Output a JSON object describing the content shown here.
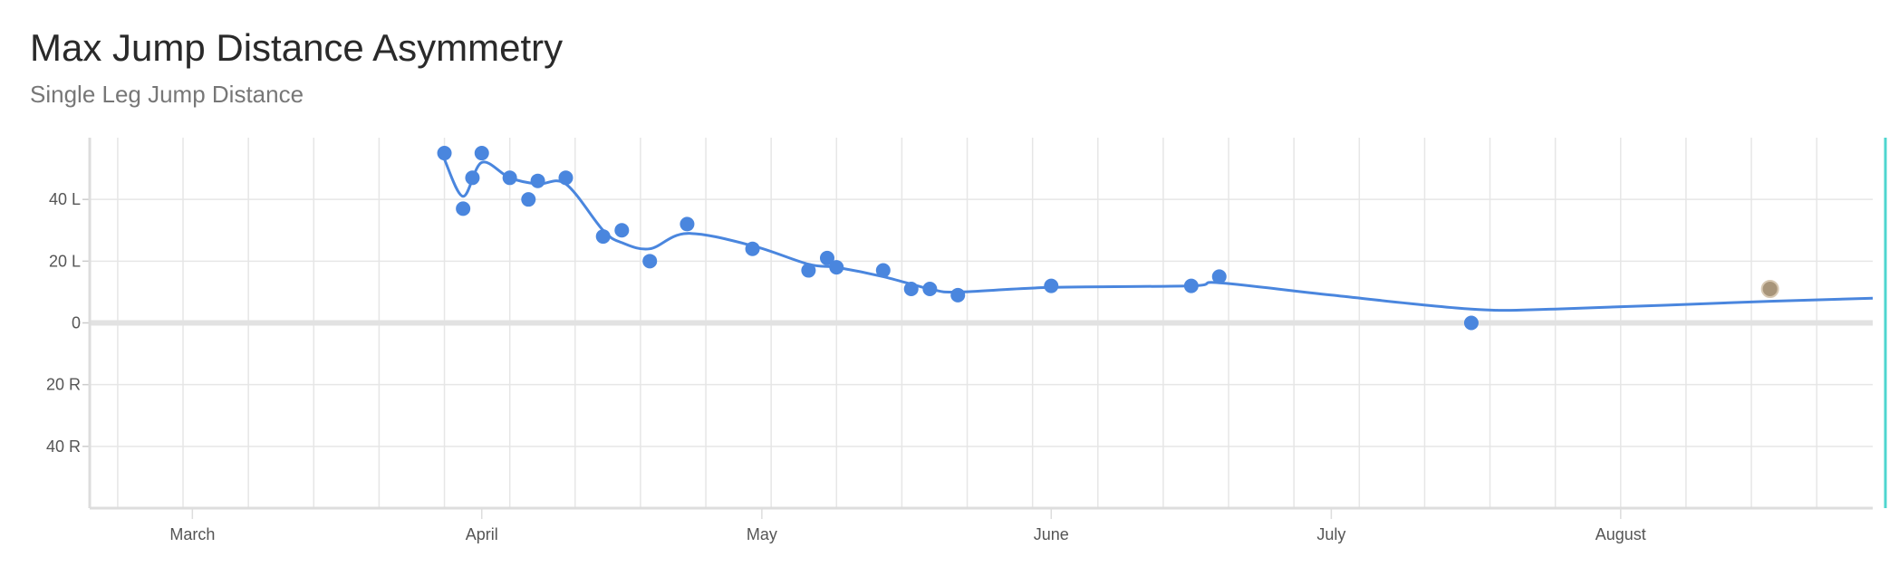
{
  "title": "Max Jump Distance Asymmetry",
  "subtitle": "Single Leg Jump Distance",
  "chart_data": {
    "type": "line",
    "title": "Max Jump Distance Asymmetry",
    "subtitle": "Single Leg Jump Distance",
    "xlabel": "",
    "ylabel": "",
    "x_axis": {
      "type": "date",
      "range": [
        "2023-02-18",
        "2023-08-28"
      ],
      "ticks": [
        {
          "date": "2023-03-01",
          "label": "March"
        },
        {
          "date": "2023-04-01",
          "label": "April"
        },
        {
          "date": "2023-05-01",
          "label": "May"
        },
        {
          "date": "2023-06-01",
          "label": "June"
        },
        {
          "date": "2023-07-01",
          "label": "July"
        },
        {
          "date": "2023-08-01",
          "label": "August"
        }
      ]
    },
    "y_axis": {
      "range": [
        -60,
        60
      ],
      "ticks": [
        {
          "value": 40,
          "label": "40 L"
        },
        {
          "value": 20,
          "label": "20 L"
        },
        {
          "value": 0,
          "label": "0"
        },
        {
          "value": -20,
          "label": "20 R"
        },
        {
          "value": -40,
          "label": "40 R"
        }
      ]
    },
    "grid": true,
    "series": [
      {
        "color": "#4a86de",
        "points": [
          {
            "x": "2023-03-28",
            "y": 55
          },
          {
            "x": "2023-03-30",
            "y": 37
          },
          {
            "x": "2023-03-31",
            "y": 47
          },
          {
            "x": "2023-04-01",
            "y": 55
          },
          {
            "x": "2023-04-04",
            "y": 47
          },
          {
            "x": "2023-04-06",
            "y": 40
          },
          {
            "x": "2023-04-07",
            "y": 46
          },
          {
            "x": "2023-04-10",
            "y": 47
          },
          {
            "x": "2023-04-14",
            "y": 28
          },
          {
            "x": "2023-04-16",
            "y": 30
          },
          {
            "x": "2023-04-19",
            "y": 20
          },
          {
            "x": "2023-04-23",
            "y": 32
          },
          {
            "x": "2023-04-30",
            "y": 24
          },
          {
            "x": "2023-05-06",
            "y": 17
          },
          {
            "x": "2023-05-08",
            "y": 21
          },
          {
            "x": "2023-05-09",
            "y": 18
          },
          {
            "x": "2023-05-14",
            "y": 17
          },
          {
            "x": "2023-05-17",
            "y": 11
          },
          {
            "x": "2023-05-19",
            "y": 11
          },
          {
            "x": "2023-05-22",
            "y": 9
          },
          {
            "x": "2023-06-01",
            "y": 12
          },
          {
            "x": "2023-06-16",
            "y": 12
          },
          {
            "x": "2023-06-19",
            "y": 15
          },
          {
            "x": "2023-07-16",
            "y": 0
          }
        ]
      },
      {
        "color": "#a8957a",
        "points": [
          {
            "x": "2023-08-17",
            "y": 11
          }
        ]
      }
    ],
    "trend_line": {
      "color": "#4a86de",
      "points": [
        {
          "x": "2023-03-28",
          "y": 53
        },
        {
          "x": "2023-03-30",
          "y": 41
        },
        {
          "x": "2023-04-01",
          "y": 52
        },
        {
          "x": "2023-04-04",
          "y": 47
        },
        {
          "x": "2023-04-07",
          "y": 45
        },
        {
          "x": "2023-04-10",
          "y": 45
        },
        {
          "x": "2023-04-14",
          "y": 30
        },
        {
          "x": "2023-04-16",
          "y": 26
        },
        {
          "x": "2023-04-19",
          "y": 24
        },
        {
          "x": "2023-04-23",
          "y": 29
        },
        {
          "x": "2023-04-30",
          "y": 25
        },
        {
          "x": "2023-05-06",
          "y": 19
        },
        {
          "x": "2023-05-09",
          "y": 18
        },
        {
          "x": "2023-05-14",
          "y": 15
        },
        {
          "x": "2023-05-19",
          "y": 11
        },
        {
          "x": "2023-05-22",
          "y": 10
        },
        {
          "x": "2023-06-01",
          "y": 11.5
        },
        {
          "x": "2023-06-16",
          "y": 12
        },
        {
          "x": "2023-06-19",
          "y": 13
        },
        {
          "x": "2023-07-01",
          "y": 9
        },
        {
          "x": "2023-07-16",
          "y": 4.5
        },
        {
          "x": "2023-07-25",
          "y": 4.5
        },
        {
          "x": "2023-08-17",
          "y": 7
        },
        {
          "x": "2023-08-28",
          "y": 8
        }
      ]
    },
    "colors": {
      "series": "#4a86de",
      "highlight_point": "#a8957a",
      "grid": "#e6e6e6",
      "zero_line": "#e2e2e2",
      "right_marker": "#4fd6cf"
    }
  }
}
